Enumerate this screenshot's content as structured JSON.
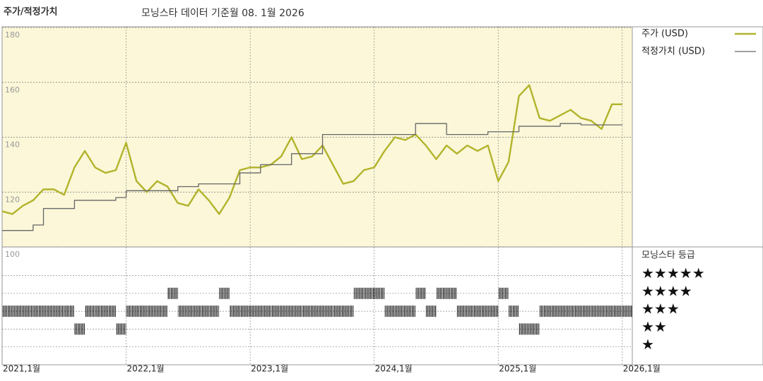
{
  "chart_data": [
    {
      "type": "line",
      "title": "주가/적정가치",
      "subtitle": "모닝스타 데이터 기준월 08. 1월 2026",
      "x": [
        "2021-01",
        "2021-02",
        "2021-03",
        "2021-04",
        "2021-05",
        "2021-06",
        "2021-07",
        "2021-08",
        "2021-09",
        "2021-10",
        "2021-11",
        "2021-12",
        "2022-01",
        "2022-02",
        "2022-03",
        "2022-04",
        "2022-05",
        "2022-06",
        "2022-07",
        "2022-08",
        "2022-09",
        "2022-10",
        "2022-11",
        "2022-12",
        "2023-01",
        "2023-02",
        "2023-03",
        "2023-04",
        "2023-05",
        "2023-06",
        "2023-07",
        "2023-08",
        "2023-09",
        "2023-10",
        "2023-11",
        "2023-12",
        "2024-01",
        "2024-02",
        "2024-03",
        "2024-04",
        "2024-05",
        "2024-06",
        "2024-07",
        "2024-08",
        "2024-09",
        "2024-10",
        "2024-11",
        "2024-12",
        "2025-01",
        "2025-02",
        "2025-03",
        "2025-04",
        "2025-05",
        "2025-06",
        "2025-07",
        "2025-08",
        "2025-09",
        "2025-10",
        "2025-11",
        "2025-12",
        "2026-01"
      ],
      "xticks": [
        {
          "value": "2021-01",
          "label": "2021,1월"
        },
        {
          "value": "2022-01",
          "label": "2022,1월"
        },
        {
          "value": "2023-01",
          "label": "2023,1월"
        },
        {
          "value": "2024-01",
          "label": "2024,1월"
        },
        {
          "value": "2025-01",
          "label": "2025,1월"
        },
        {
          "value": "2026-01",
          "label": "2026,1월"
        }
      ],
      "ylim": [
        100,
        180
      ],
      "yticks": [
        100,
        120,
        140,
        160,
        180
      ],
      "grid": true,
      "series": [
        {
          "name": "주가 (USD)",
          "color": "#b2b32b",
          "values": [
            113,
            112,
            115,
            117,
            121,
            121,
            119,
            129,
            135,
            129,
            127,
            128,
            138,
            124,
            120,
            124,
            122,
            116,
            115,
            121,
            117,
            112,
            118,
            128,
            129,
            129,
            130,
            133,
            140,
            132,
            133,
            137,
            130,
            123,
            124,
            128,
            129,
            135,
            140,
            139,
            141,
            137,
            132,
            137,
            134,
            137,
            135,
            137,
            124,
            131,
            155,
            159,
            147,
            146,
            148,
            150,
            147,
            146,
            143,
            152,
            152
          ]
        },
        {
          "name": "적정가치 (USD)",
          "color": "#666666",
          "step": true,
          "values": [
            106,
            106,
            106,
            108,
            114,
            114,
            114,
            117,
            117,
            117,
            117,
            118,
            120.5,
            120.5,
            120.5,
            120.5,
            120.5,
            122,
            122,
            123,
            123,
            123,
            123,
            127,
            127,
            130,
            130,
            130,
            134,
            134,
            134,
            141,
            141,
            141,
            141,
            141,
            141,
            141,
            141,
            141,
            145,
            145,
            145,
            141,
            141,
            141,
            141,
            142,
            142,
            142,
            144,
            144,
            144,
            144,
            145,
            145,
            144.5,
            144.5,
            144.5,
            144.5,
            144.5
          ]
        }
      ]
    },
    {
      "type": "rating",
      "legend_title": "모닝스타 등급",
      "x": [
        "2021-01",
        "2021-02",
        "2021-03",
        "2021-04",
        "2021-05",
        "2021-06",
        "2021-07",
        "2021-08",
        "2021-09",
        "2021-10",
        "2021-11",
        "2021-12",
        "2022-01",
        "2022-02",
        "2022-03",
        "2022-04",
        "2022-05",
        "2022-06",
        "2022-07",
        "2022-08",
        "2022-09",
        "2022-10",
        "2022-11",
        "2022-12",
        "2023-01",
        "2023-02",
        "2023-03",
        "2023-04",
        "2023-05",
        "2023-06",
        "2023-07",
        "2023-08",
        "2023-09",
        "2023-10",
        "2023-11",
        "2023-12",
        "2024-01",
        "2024-02",
        "2024-03",
        "2024-04",
        "2024-05",
        "2024-06",
        "2024-07",
        "2024-08",
        "2024-09",
        "2024-10",
        "2024-11",
        "2024-12",
        "2025-01",
        "2025-02",
        "2025-03",
        "2025-04",
        "2025-05",
        "2025-06",
        "2025-07",
        "2025-08",
        "2025-09",
        "2025-10",
        "2025-11",
        "2025-12",
        "2026-01"
      ],
      "values": [
        3,
        3,
        3,
        3,
        3,
        3,
        3,
        2,
        3,
        3,
        3,
        2,
        3,
        3,
        3,
        3,
        4,
        3,
        3,
        3,
        3,
        4,
        3,
        3,
        3,
        3,
        3,
        3,
        3,
        3,
        3,
        3,
        3,
        3,
        4,
        4,
        4,
        3,
        3,
        3,
        4,
        3,
        4,
        4,
        3,
        3,
        3,
        3,
        4,
        3,
        2,
        2,
        3,
        3,
        3,
        3,
        3,
        3,
        3,
        3,
        3
      ],
      "ylim": [
        0,
        6.6
      ],
      "yticks": [
        {
          "value": 5,
          "label": "★★★★★"
        },
        {
          "value": 4,
          "label": "★★★★"
        },
        {
          "value": 3,
          "label": "★★★"
        },
        {
          "value": 2,
          "label": "★★"
        },
        {
          "value": 1,
          "label": "★"
        }
      ]
    }
  ]
}
